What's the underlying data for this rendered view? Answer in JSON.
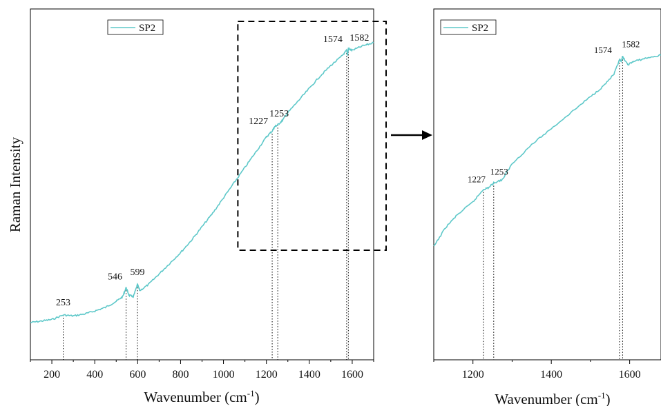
{
  "chart_data": [
    {
      "type": "line",
      "id": "main",
      "title": "",
      "xlabel": "Wavenumber (cm",
      "xlabel_sup": "-1",
      "xlabel_end": ")",
      "ylabel": "Raman Intensity",
      "xlim": [
        100,
        1700
      ],
      "x_ticks": [
        200,
        400,
        600,
        800,
        1000,
        1200,
        1400,
        1600
      ],
      "legend": "top-left",
      "series": [
        {
          "name": "SP2",
          "color": "#5ec8c9",
          "points": [
            [
              100,
              0.09
            ],
            [
              150,
              0.095
            ],
            [
              200,
              0.1
            ],
            [
              253,
              0.115
            ],
            [
              300,
              0.112
            ],
            [
              350,
              0.118
            ],
            [
              400,
              0.128
            ],
            [
              450,
              0.14
            ],
            [
              500,
              0.16
            ],
            [
              530,
              0.175
            ],
            [
              546,
              0.205
            ],
            [
              560,
              0.18
            ],
            [
              580,
              0.175
            ],
            [
              599,
              0.215
            ],
            [
              610,
              0.195
            ],
            [
              650,
              0.215
            ],
            [
              700,
              0.25
            ],
            [
              750,
              0.285
            ],
            [
              800,
              0.32
            ],
            [
              850,
              0.36
            ],
            [
              900,
              0.405
            ],
            [
              950,
              0.45
            ],
            [
              1000,
              0.5
            ],
            [
              1050,
              0.55
            ],
            [
              1100,
              0.6
            ],
            [
              1150,
              0.65
            ],
            [
              1200,
              0.7
            ],
            [
              1227,
              0.72
            ],
            [
              1240,
              0.735
            ],
            [
              1253,
              0.74
            ],
            [
              1275,
              0.755
            ],
            [
              1300,
              0.78
            ],
            [
              1350,
              0.82
            ],
            [
              1400,
              0.86
            ],
            [
              1450,
              0.9
            ],
            [
              1500,
              0.935
            ],
            [
              1550,
              0.965
            ],
            [
              1574,
              0.985
            ],
            [
              1578,
              0.97
            ],
            [
              1582,
              0.99
            ],
            [
              1600,
              0.985
            ],
            [
              1650,
              1.0
            ],
            [
              1700,
              1.01
            ]
          ]
        }
      ],
      "peaks": [
        "253",
        "546",
        "599",
        "1227",
        "1253",
        "1574",
        "1582"
      ],
      "peak_x": [
        253,
        546,
        599,
        1227,
        1253,
        1574,
        1582
      ]
    },
    {
      "type": "line",
      "id": "inset",
      "title": "",
      "xlabel": "Wavenumber (cm",
      "xlabel_sup": "-1",
      "xlabel_end": ")",
      "ylabel": "",
      "xlim": [
        1100,
        1680
      ],
      "x_ticks": [
        1200,
        1400,
        1600
      ],
      "legend": "top-left",
      "series": [
        {
          "name": "SP2",
          "color": "#5ec8c9",
          "points": [
            [
              1100,
              0.46
            ],
            [
              1130,
              0.52
            ],
            [
              1160,
              0.56
            ],
            [
              1200,
              0.6
            ],
            [
              1227,
              0.64
            ],
            [
              1240,
              0.645
            ],
            [
              1253,
              0.66
            ],
            [
              1275,
              0.67
            ],
            [
              1300,
              0.72
            ],
            [
              1350,
              0.78
            ],
            [
              1400,
              0.83
            ],
            [
              1450,
              0.88
            ],
            [
              1500,
              0.93
            ],
            [
              1530,
              0.96
            ],
            [
              1560,
              1.0
            ],
            [
              1574,
              1.045
            ],
            [
              1578,
              1.04
            ],
            [
              1582,
              1.055
            ],
            [
              1595,
              1.03
            ],
            [
              1610,
              1.04
            ],
            [
              1640,
              1.05
            ],
            [
              1680,
              1.06
            ]
          ]
        }
      ],
      "peaks": [
        "1227",
        "1253",
        "1574",
        "1582"
      ],
      "peak_x": [
        1227,
        1253,
        1574,
        1582
      ]
    }
  ]
}
